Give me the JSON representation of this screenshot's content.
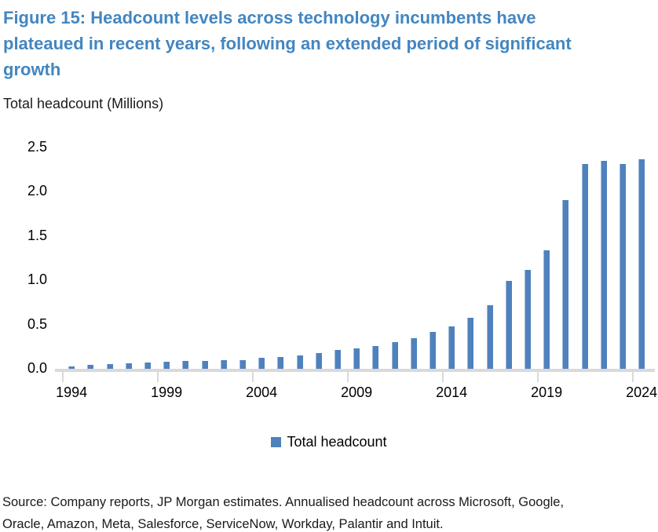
{
  "figure": {
    "title_lines": [
      "Figure 15: Headcount levels across technology incumbents have",
      "plateaued in recent years, following an extended period of significant",
      "growth"
    ],
    "axis_title": "Total headcount (Millions)",
    "title_color": "#4386C1",
    "source_lines": [
      "Source: Company reports, JP Morgan estimates. Annualised headcount across Microsoft, Google,",
      "Oracle, Amazon, Meta, Salesforce, ServiceNow, Workday, Palantir and Intuit."
    ]
  },
  "legend": {
    "label": "Total headcount",
    "color": "#4F81BD"
  },
  "chart_data": {
    "type": "bar",
    "title": "Figure 15: Headcount levels across technology incumbents have plateaued in recent years, following an extended period of significant growth",
    "ylabel": "Total headcount (Millions)",
    "xlabel": "",
    "ylim": [
      0,
      2.5
    ],
    "grid": false,
    "legend_position": "bottom",
    "bar_color": "#4F81BD",
    "axis_color": "#D9D9D9",
    "y_tick_labels": [
      "0.0",
      "0.5",
      "1.0",
      "1.5",
      "2.0",
      "2.5"
    ],
    "x_tick_labels": [
      "1994",
      "1999",
      "2004",
      "2009",
      "2014",
      "2019",
      "2024"
    ],
    "categories": [
      1994,
      1995,
      1996,
      1997,
      1998,
      1999,
      2000,
      2001,
      2002,
      2003,
      2004,
      2005,
      2006,
      2007,
      2008,
      2009,
      2010,
      2011,
      2012,
      2013,
      2014,
      2015,
      2016,
      2017,
      2018,
      2019,
      2020,
      2021,
      2022,
      2023,
      2024
    ],
    "series": [
      {
        "name": "Total headcount",
        "values": [
          0.03,
          0.04,
          0.05,
          0.06,
          0.07,
          0.08,
          0.09,
          0.09,
          0.1,
          0.1,
          0.12,
          0.13,
          0.15,
          0.18,
          0.21,
          0.23,
          0.26,
          0.3,
          0.35,
          0.42,
          0.48,
          0.58,
          0.72,
          0.99,
          1.12,
          1.34,
          1.91,
          2.31,
          2.35,
          2.31,
          2.37
        ]
      }
    ]
  }
}
